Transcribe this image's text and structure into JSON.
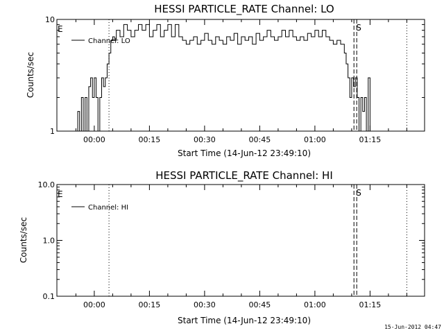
{
  "footer": {
    "timestamp": "15-Jun-2012 04:47"
  },
  "chart_data": [
    {
      "type": "line",
      "title": "HESSI PARTICLE_RATE Channel: LO",
      "xlabel": "Start Time (14-Jun-12 23:49:10)",
      "ylabel": "Counts/sec",
      "y_scale": "log",
      "ylim": [
        1,
        10
      ],
      "y_ticks": [
        "1",
        "10"
      ],
      "xlim_minutes": [
        -10.17,
        89.83
      ],
      "x_ticks": [
        "00:00",
        "00:15",
        "00:30",
        "00:45",
        "01:00",
        "01:15"
      ],
      "legend": {
        "label": "Channel: LO",
        "position": "top-left"
      },
      "markers": [
        {
          "label": "E",
          "time": "00:04",
          "style": "dotted"
        },
        {
          "label": "S",
          "time": "01:11",
          "style": "dashed"
        },
        {
          "label": "",
          "time": "01:25",
          "style": "dotted"
        }
      ],
      "series": [
        {
          "x": [
            "23:53",
            "23:55",
            "23:55.5",
            "23:56",
            "23:56.5",
            "23:57",
            "23:57.5",
            "23:58",
            "23:58.5",
            "23:59",
            "23:59.5",
            "00:00",
            "00:00.5",
            "00:01",
            "00:01.5",
            "00:02",
            "00:02.5",
            "00:03",
            "00:03.5",
            "00:04",
            "00:04.5",
            "00:05",
            "00:05.5",
            "00:06",
            "00:07",
            "00:08",
            "00:09",
            "00:10",
            "00:11",
            "00:12",
            "00:13",
            "00:14",
            "00:15",
            "00:16",
            "00:17",
            "00:18",
            "00:19",
            "00:20",
            "00:21",
            "00:22",
            "00:23",
            "00:24",
            "00:25",
            "00:26",
            "00:27",
            "00:28",
            "00:29",
            "00:30",
            "00:31",
            "00:32",
            "00:33",
            "00:34",
            "00:35",
            "00:36",
            "00:37",
            "00:38",
            "00:39",
            "00:40",
            "00:41",
            "00:42",
            "00:43",
            "00:44",
            "00:45",
            "00:46",
            "00:47",
            "00:48",
            "00:49",
            "00:50",
            "00:51",
            "00:52",
            "00:53",
            "00:54",
            "00:55",
            "00:56",
            "00:57",
            "00:58",
            "00:59",
            "01:00",
            "01:01",
            "01:02",
            "01:03",
            "01:04",
            "01:05",
            "01:06",
            "01:07",
            "01:08",
            "01:08.5",
            "01:09",
            "01:09.5",
            "01:10",
            "01:10.5",
            "01:11",
            "01:11.5",
            "01:12",
            "01:12.5",
            "01:13",
            "01:13.5",
            "01:14",
            "01:14.5",
            "01:15"
          ],
          "y": [
            1,
            1,
            1.5,
            1,
            2,
            1,
            2,
            1,
            2.5,
            3,
            2,
            3,
            2,
            1,
            2,
            3,
            2.5,
            3,
            4,
            5,
            6.5,
            7,
            6.5,
            8,
            7,
            9,
            8,
            7,
            8,
            9,
            8,
            9,
            7,
            8,
            9,
            7,
            8,
            9,
            7,
            9,
            7,
            6.5,
            6,
            6.5,
            7,
            6,
            6.5,
            7.5,
            6.5,
            6,
            7,
            6.5,
            6,
            7,
            6.5,
            7.5,
            6,
            7,
            6.5,
            7,
            6,
            7.5,
            6.5,
            7,
            8,
            7,
            6.5,
            7,
            8,
            7,
            8,
            7,
            6.5,
            7,
            6.5,
            7.5,
            7,
            8,
            7,
            8,
            7,
            6.5,
            6,
            6.5,
            6,
            5,
            4,
            3,
            2,
            3,
            2.5,
            3,
            2,
            1,
            2,
            1.5,
            2,
            1,
            3,
            1
          ]
        }
      ]
    },
    {
      "type": "line",
      "title": "HESSI PARTICLE_RATE Channel: HI",
      "xlabel": "Start Time (14-Jun-12 23:49:10)",
      "ylabel": "Counts/sec",
      "y_scale": "log",
      "ylim": [
        0.1,
        10
      ],
      "y_ticks": [
        "0.1",
        "1.0",
        "10.0"
      ],
      "xlim_minutes": [
        -10.17,
        89.83
      ],
      "x_ticks": [
        "00:00",
        "00:15",
        "00:30",
        "00:45",
        "01:00",
        "01:15"
      ],
      "legend": {
        "label": "Channel: HI",
        "position": "top-left"
      },
      "markers": [
        {
          "label": "E",
          "time": "00:04",
          "style": "dotted"
        },
        {
          "label": "S",
          "time": "01:11",
          "style": "dashed"
        },
        {
          "label": "",
          "time": "01:25",
          "style": "dotted"
        }
      ],
      "series": [
        {
          "x": [],
          "y": []
        }
      ]
    }
  ]
}
